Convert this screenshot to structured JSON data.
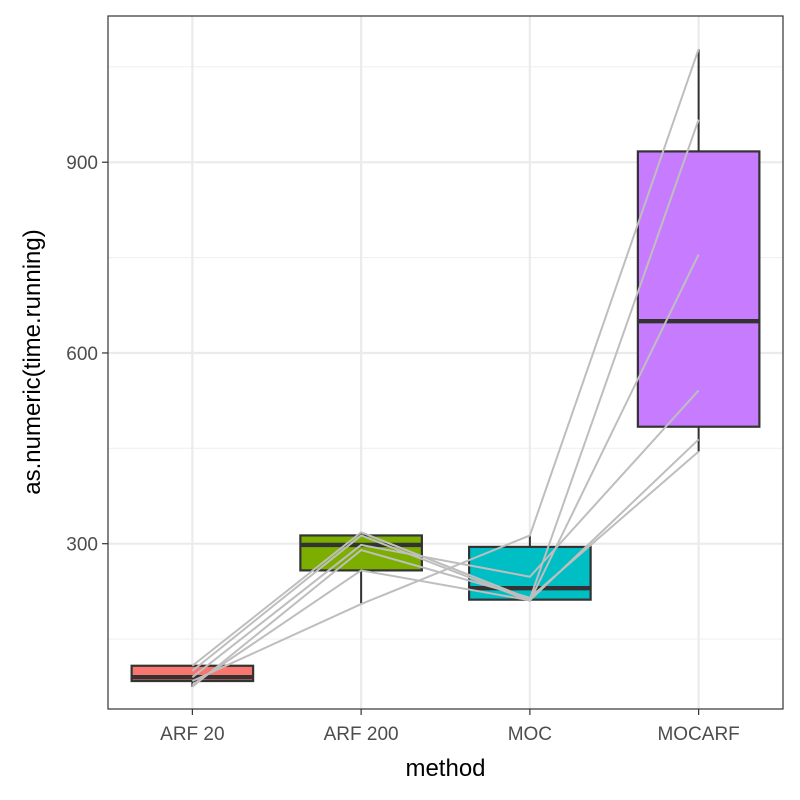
{
  "chart_data": {
    "type": "box",
    "xlabel": "method",
    "ylabel": "as.numeric(time.running)",
    "categories": [
      "ARF 20",
      "ARF 200",
      "MOC",
      "MOCARF"
    ],
    "y_ticks": [
      300,
      600,
      900
    ],
    "ylim": [
      40,
      1130
    ],
    "grid": true,
    "colors": {
      "ARF 20": "#F8766D",
      "ARF 200": "#7CAE00",
      "MOC": "#00BFC4",
      "MOCARF": "#C77CFF",
      "lines": "#BEBEBE",
      "box_outline": "#333333"
    },
    "boxes": [
      {
        "category": "ARF 20",
        "min": 75,
        "q1": 84,
        "median": 90,
        "q3": 108,
        "max": 108
      },
      {
        "category": "ARF 200",
        "min": 205,
        "q1": 258,
        "median": 298,
        "q3": 313,
        "max": 318
      },
      {
        "category": "MOC",
        "min": 210,
        "q1": 212,
        "median": 230,
        "q3": 295,
        "max": 313
      },
      {
        "category": "MOCARF",
        "min": 445,
        "q1": 484,
        "median": 650,
        "q3": 917,
        "max": 1078
      }
    ],
    "paired_lines": [
      [
        108,
        318,
        213,
        967
      ],
      [
        90,
        298,
        248,
        541
      ],
      [
        84,
        205,
        313,
        1078
      ],
      [
        100,
        313,
        210,
        755
      ],
      [
        75,
        290,
        215,
        445
      ],
      [
        78,
        258,
        211,
        464
      ]
    ]
  }
}
